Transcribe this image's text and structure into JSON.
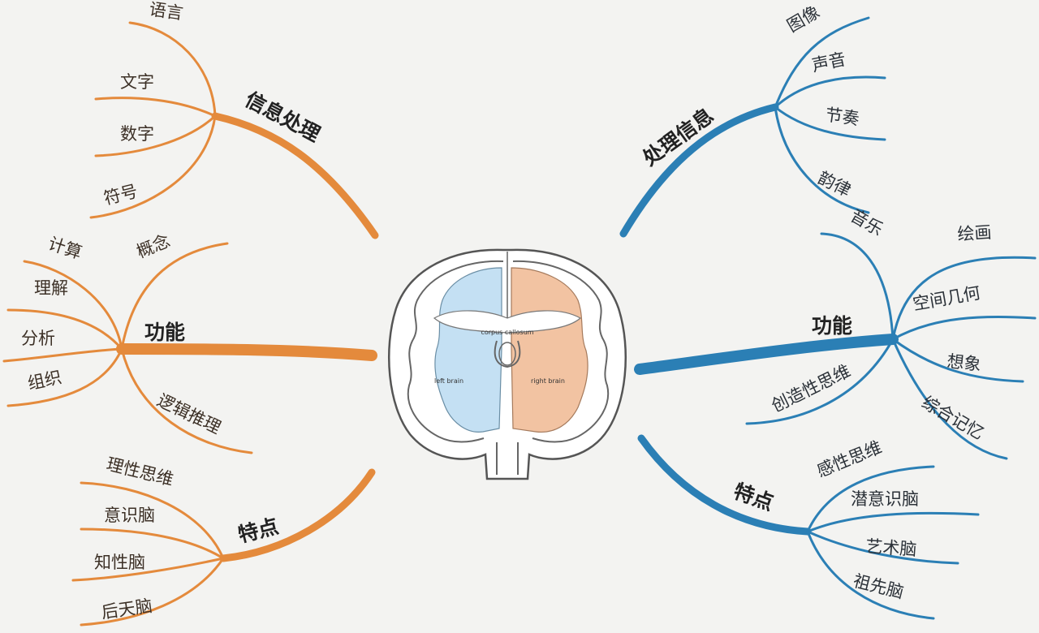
{
  "colors": {
    "left": "#e48a3c",
    "right": "#2b7fb5",
    "left_fill": "#f2c3a2",
    "right_fill": "#c4e0f3"
  },
  "brain": {
    "left_label": "left brain",
    "right_label": "right brain",
    "corpus_label": "corpus callosum"
  },
  "left": {
    "info": {
      "title": "信息处理",
      "items": [
        "语言",
        "文字",
        "数字",
        "符号"
      ]
    },
    "function": {
      "title": "功能",
      "items": [
        "计算",
        "概念",
        "理解",
        "分析",
        "组织",
        "逻辑推理"
      ]
    },
    "traits": {
      "title": "特点",
      "items": [
        "理性思维",
        "意识脑",
        "知性脑",
        "后天脑"
      ]
    }
  },
  "right": {
    "info": {
      "title": "处理信息",
      "items": [
        "图像",
        "声音",
        "节奏",
        "韵律"
      ]
    },
    "function": {
      "title": "功能",
      "items": [
        "音乐",
        "绘画",
        "空间几何",
        "想象",
        "综合记忆",
        "创造性思维"
      ]
    },
    "traits": {
      "title": "特点",
      "items": [
        "感性思维",
        "潜意识脑",
        "艺术脑",
        "祖先脑"
      ]
    }
  }
}
